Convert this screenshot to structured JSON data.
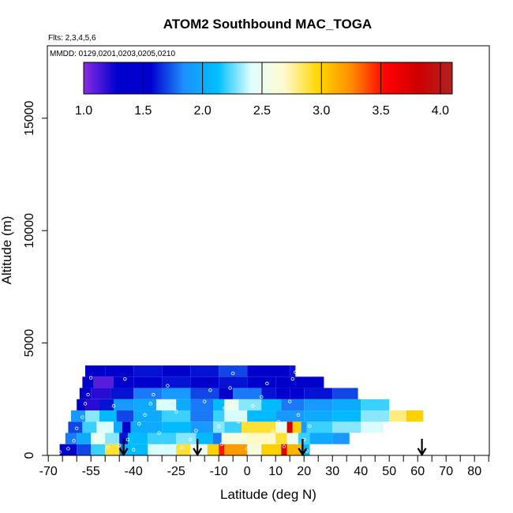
{
  "chart_data": {
    "type": "heatmap",
    "title": "ATOM2 Southbound MAC_TOGA",
    "subtitle": "Flts: 2,3,4,5,6",
    "annotation": "MMDD: 0129,0201,0203,0205,0210",
    "xlabel": "Latitude (deg N)",
    "ylabel": "Altitude (m)",
    "xlim": [
      -70,
      85
    ],
    "ylim": [
      0,
      18000
    ],
    "x_ticks": [
      -70,
      -55,
      -40,
      -25,
      -10,
      0,
      10,
      20,
      30,
      40,
      50,
      60,
      70,
      80
    ],
    "x_tick_labels": [
      "-70",
      "-55",
      "-40",
      "-25",
      "-10",
      "0",
      "10",
      "20",
      "30",
      "40",
      "50",
      "60",
      "70",
      "80"
    ],
    "x_minor_ticks": [
      -65,
      -60,
      -50,
      -45,
      -35,
      -30,
      -20,
      -15,
      -5,
      5,
      15,
      25,
      35,
      45,
      55,
      65,
      75,
      85
    ],
    "y_ticks": [
      0,
      5000,
      10000,
      15000
    ],
    "y_tick_labels": [
      "0",
      "5000",
      "10000",
      "15000"
    ],
    "colorbar": {
      "range": [
        1.0,
        4.1
      ],
      "ticks": [
        1.0,
        1.5,
        2.0,
        2.5,
        3.0,
        3.5,
        4.0
      ],
      "tick_labels": [
        "1.0",
        "1.5",
        "2.0",
        "2.5",
        "3.0",
        "3.5",
        "4.0"
      ],
      "colors": [
        "#8a2be2",
        "#0000cd",
        "#0000cd",
        "#1e90ff",
        "#00bfff",
        "#e0ffff",
        "#fffacd",
        "#ffd700",
        "#ff8c00",
        "#ff0000",
        "#cd0000",
        "#b22222"
      ]
    },
    "layer_altitude_bounds": [
      0,
      500,
      1000,
      1500,
      2000,
      2500,
      3000,
      3500,
      4000
    ],
    "layers": [
      {
        "segments": [
          [
            -66,
            -60,
            1.5
          ],
          [
            -60,
            -55,
            1.7
          ],
          [
            -55,
            -50,
            2.2
          ],
          [
            -50,
            -45,
            2.9
          ],
          [
            -45,
            -43,
            1.8
          ],
          [
            -43,
            -35,
            2.1
          ],
          [
            -35,
            -25,
            2.4
          ],
          [
            -25,
            -20,
            2.9
          ],
          [
            -20,
            -14,
            2.5
          ],
          [
            -14,
            -10,
            3.0
          ],
          [
            -10,
            -8,
            3.5
          ],
          [
            -8,
            0,
            3.2
          ],
          [
            0,
            5,
            2.6
          ],
          [
            5,
            12,
            3.0
          ],
          [
            12,
            14,
            3.7
          ],
          [
            14,
            19,
            3.1
          ],
          [
            19,
            22,
            2.1
          ]
        ]
      },
      {
        "segments": [
          [
            -64,
            -60,
            1.8
          ],
          [
            -60,
            -55,
            2.0
          ],
          [
            -55,
            -50,
            2.5
          ],
          [
            -50,
            -45,
            2.3
          ],
          [
            -45,
            -42,
            1.6
          ],
          [
            -42,
            -35,
            2.1
          ],
          [
            -35,
            -25,
            2.2
          ],
          [
            -25,
            -18,
            2.3
          ],
          [
            -18,
            -12,
            2.1
          ],
          [
            -12,
            -9,
            1.8
          ],
          [
            -9,
            0,
            2.6
          ],
          [
            0,
            10,
            2.7
          ],
          [
            10,
            14,
            2.9
          ],
          [
            14,
            18,
            2.5
          ],
          [
            18,
            22,
            2.2
          ],
          [
            22,
            30,
            2.0
          ],
          [
            30,
            36,
            1.9
          ]
        ]
      },
      {
        "segments": [
          [
            -63,
            -58,
            1.7
          ],
          [
            -58,
            -53,
            2.2
          ],
          [
            -53,
            -47,
            2.4
          ],
          [
            -47,
            -44,
            2.0
          ],
          [
            -44,
            -41,
            1.5
          ],
          [
            -41,
            -30,
            2.0
          ],
          [
            -30,
            -20,
            2.1
          ],
          [
            -20,
            -12,
            1.9
          ],
          [
            -12,
            -8,
            2.3
          ],
          [
            -8,
            -2,
            2.2
          ],
          [
            -2,
            10,
            2.9
          ],
          [
            10,
            14,
            2.5
          ],
          [
            14,
            16,
            3.8
          ],
          [
            16,
            19,
            3.0
          ],
          [
            19,
            21,
            1.9
          ],
          [
            21,
            30,
            2.2
          ],
          [
            30,
            40,
            2.3
          ],
          [
            40,
            48,
            2.4
          ]
        ]
      },
      {
        "segments": [
          [
            -62,
            -57,
            1.9
          ],
          [
            -57,
            -52,
            2.3
          ],
          [
            -52,
            -46,
            2.1
          ],
          [
            -46,
            -40,
            1.7
          ],
          [
            -40,
            -30,
            2.0
          ],
          [
            -30,
            -20,
            2.2
          ],
          [
            -20,
            -12,
            1.8
          ],
          [
            -12,
            -8,
            2.2
          ],
          [
            -8,
            0,
            2.4
          ],
          [
            0,
            10,
            2.1
          ],
          [
            10,
            20,
            1.9
          ],
          [
            20,
            30,
            2.0
          ],
          [
            30,
            40,
            2.1
          ],
          [
            40,
            50,
            2.3
          ],
          [
            50,
            56,
            2.8
          ],
          [
            56,
            62,
            3.0
          ]
        ]
      },
      {
        "segments": [
          [
            -60,
            -57,
            1.5
          ],
          [
            -57,
            -52,
            1.2
          ],
          [
            -52,
            -47,
            1.6
          ],
          [
            -47,
            -40,
            1.9
          ],
          [
            -40,
            -32,
            2.0
          ],
          [
            -32,
            -25,
            2.4
          ],
          [
            -25,
            -20,
            2.0
          ],
          [
            -20,
            -12,
            1.8
          ],
          [
            -12,
            -8,
            2.1
          ],
          [
            -8,
            -3,
            2.5
          ],
          [
            -3,
            5,
            2.3
          ],
          [
            5,
            12,
            2.1
          ],
          [
            12,
            20,
            1.8
          ],
          [
            20,
            30,
            1.9
          ],
          [
            30,
            40,
            2.0
          ],
          [
            40,
            50,
            2.2
          ]
        ]
      },
      {
        "segments": [
          [
            -59,
            -55,
            1.5
          ],
          [
            -55,
            -48,
            1.2
          ],
          [
            -48,
            -40,
            1.6
          ],
          [
            -40,
            -30,
            1.8
          ],
          [
            -30,
            -20,
            1.9
          ],
          [
            -20,
            -10,
            1.7
          ],
          [
            -10,
            -5,
            1.5
          ],
          [
            -5,
            5,
            1.8
          ],
          [
            5,
            10,
            1.6
          ],
          [
            10,
            15,
            1.3
          ],
          [
            15,
            20,
            1.5
          ],
          [
            20,
            30,
            1.6
          ],
          [
            30,
            39,
            1.7
          ]
        ]
      },
      {
        "segments": [
          [
            -58,
            -54,
            1.4
          ],
          [
            -54,
            -47,
            1.1
          ],
          [
            -47,
            -40,
            1.3
          ],
          [
            -40,
            -30,
            1.5
          ],
          [
            -30,
            -20,
            1.6
          ],
          [
            -20,
            -10,
            1.5
          ],
          [
            -10,
            0,
            1.6
          ],
          [
            0,
            10,
            1.5
          ],
          [
            10,
            17,
            1.4
          ],
          [
            17,
            27,
            1.5
          ]
        ]
      },
      {
        "segments": [
          [
            -57,
            -50,
            1.4
          ],
          [
            -50,
            -40,
            1.5
          ],
          [
            -40,
            -30,
            1.6
          ],
          [
            -30,
            -20,
            1.5
          ],
          [
            -20,
            -10,
            1.6
          ],
          [
            -10,
            0,
            1.7
          ],
          [
            0,
            8,
            1.5
          ],
          [
            8,
            15,
            1.4
          ],
          [
            15,
            17,
            1.6
          ]
        ]
      }
    ],
    "sample_points": [
      [
        -66,
        150
      ],
      [
        -63,
        300
      ],
      [
        -61,
        650
      ],
      [
        -60,
        1200
      ],
      [
        -58,
        1700
      ],
      [
        -57,
        2300
      ],
      [
        -56,
        2700
      ],
      [
        -55,
        3450
      ],
      [
        -50,
        1100
      ],
      [
        -49,
        350
      ],
      [
        -47,
        2200
      ],
      [
        -45,
        450
      ],
      [
        -43,
        3400
      ],
      [
        -42,
        700
      ],
      [
        -40,
        250
      ],
      [
        -38,
        1400
      ],
      [
        -36,
        1800
      ],
      [
        -34,
        2300
      ],
      [
        -33,
        2700
      ],
      [
        -31,
        1000
      ],
      [
        -30,
        300
      ],
      [
        -28,
        3100
      ],
      [
        -25,
        1950
      ],
      [
        -23,
        350
      ],
      [
        -20,
        700
      ],
      [
        -18,
        1100
      ],
      [
        -15,
        2400
      ],
      [
        -13,
        2900
      ],
      [
        -10,
        1300
      ],
      [
        -9,
        500
      ],
      [
        -8,
        2100
      ],
      [
        -6,
        3000
      ],
      [
        -5,
        3650
      ],
      [
        -3,
        1500
      ],
      [
        -1,
        900
      ],
      [
        0,
        300
      ],
      [
        2,
        2200
      ],
      [
        5,
        2600
      ],
      [
        7,
        3200
      ],
      [
        9,
        1100
      ],
      [
        11,
        1500
      ],
      [
        13,
        400
      ],
      [
        15,
        2400
      ],
      [
        16,
        3400
      ],
      [
        17,
        3700
      ],
      [
        18,
        1800
      ],
      [
        20,
        700
      ],
      [
        21,
        200
      ],
      [
        22,
        1300
      ]
    ],
    "arrows_at_latitude": [
      -43.5,
      -17.5,
      19.5,
      61.5
    ]
  }
}
